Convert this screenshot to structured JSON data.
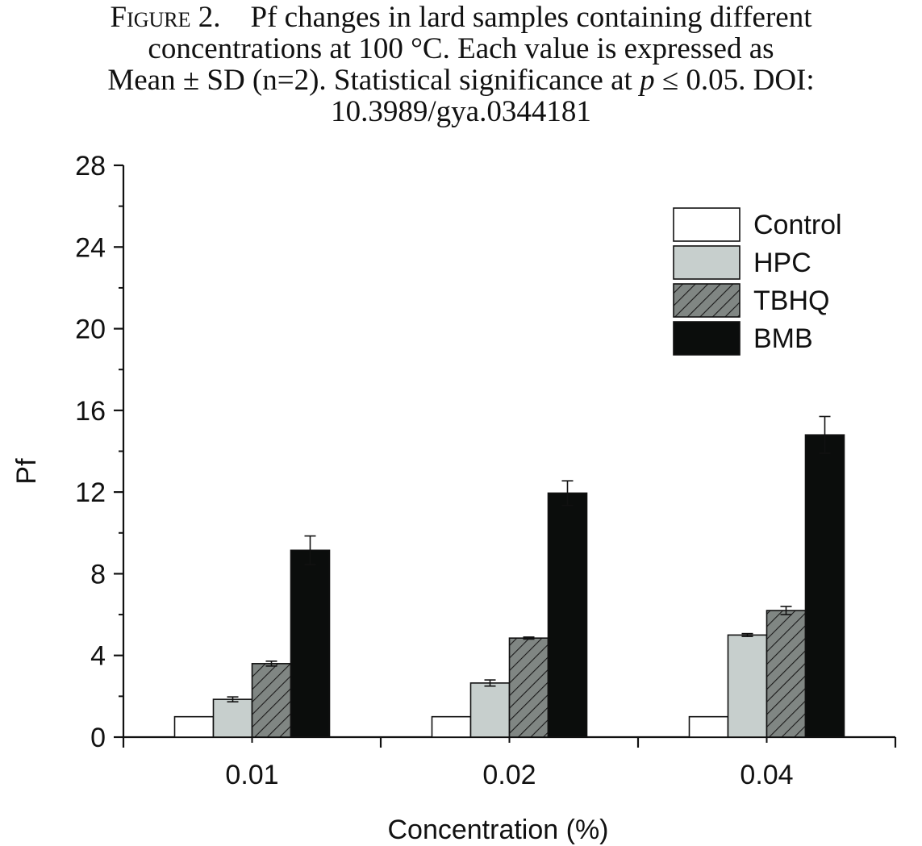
{
  "caption": {
    "line1_fig": "Figure 2.",
    "line1_rest": "Pf changes in lard samples containing different",
    "line2": "concentrations at 100 °C. Each value is expressed as",
    "line3_a": "Mean ± SD (n=2). Statistical significance at ",
    "line3_p": "p",
    "line3_b": " ≤ 0.05. DOI:",
    "line4": "10.3989/gya.0344181"
  },
  "chart_data": {
    "type": "bar",
    "title": "",
    "xlabel": "Concentration (%)",
    "ylabel": "Pf",
    "categories": [
      "0.01",
      "0.02",
      "0.04"
    ],
    "ylim": [
      0,
      28
    ],
    "yticks": [
      0,
      4,
      8,
      12,
      16,
      20,
      24,
      28
    ],
    "ytick_labels": [
      "0",
      "4",
      "8",
      "12",
      "16",
      "20",
      "24",
      "28"
    ],
    "grid": false,
    "legend_position": "top-right",
    "series": [
      {
        "name": "Control",
        "values": [
          1.0,
          1.0,
          1.0
        ],
        "errors": [
          0,
          0,
          0
        ],
        "fill": "#ffffff",
        "pattern": "none"
      },
      {
        "name": "HPC",
        "values": [
          1.85,
          2.65,
          5.0
        ],
        "errors": [
          0.12,
          0.15,
          0.07
        ],
        "fill": "#c7cfcd",
        "pattern": "none"
      },
      {
        "name": "TBHQ",
        "values": [
          3.6,
          4.85,
          6.2
        ],
        "errors": [
          0.12,
          0.05,
          0.2
        ],
        "fill": "#808683",
        "pattern": "hatch"
      },
      {
        "name": "BMB",
        "values": [
          9.15,
          11.95,
          14.8
        ],
        "errors": [
          0.7,
          0.6,
          0.9
        ],
        "fill": "#0b0d0c",
        "pattern": "none"
      }
    ]
  }
}
